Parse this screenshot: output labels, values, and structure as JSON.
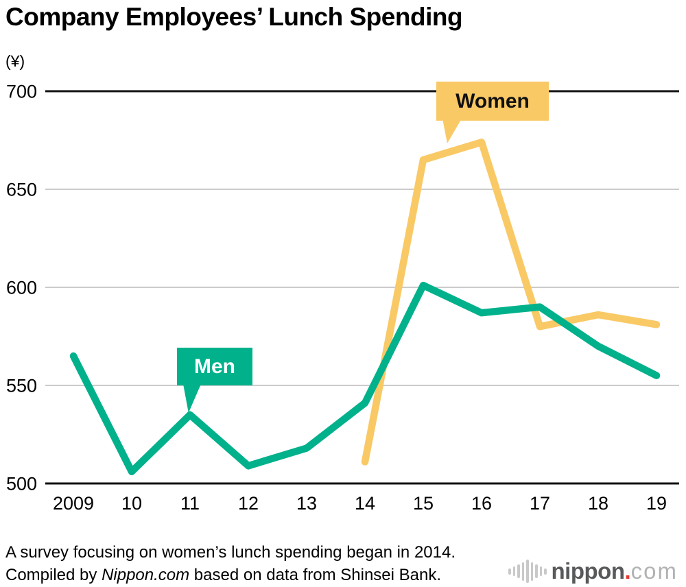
{
  "title": "Company Employees’ Lunch Spending",
  "chart_data": {
    "type": "line",
    "title": "Company Employees’ Lunch Spending",
    "unit_label": "(¥)",
    "categories": [
      "2009",
      "10",
      "11",
      "12",
      "13",
      "14",
      "15",
      "16",
      "17",
      "18",
      "19"
    ],
    "yticks": [
      700,
      650,
      600,
      550,
      500
    ],
    "ylim": [
      500,
      700
    ],
    "grid": "horizontal",
    "legend_position": "inline-callouts",
    "annotation": "Women series begins in 2014",
    "series": [
      {
        "name": "Men",
        "color": "#00B18B",
        "label_text_color": "#ffffff",
        "values": [
          565,
          506,
          535,
          509,
          518,
          541,
          601,
          587,
          590,
          570,
          555
        ]
      },
      {
        "name": "Women",
        "color": "#F9C966",
        "label_text_color": "#111111",
        "values": [
          511,
          665,
          674,
          580,
          586,
          581
        ]
      }
    ],
    "axis_color": "#111111",
    "gridline_color": "#CBCBCB",
    "tick_label_color": "#000000"
  },
  "footer": {
    "note": "A survey focusing on women’s lunch spending began in 2014.",
    "credit_prefix": "Compiled by ",
    "credit_source": "Nippon.com",
    "credit_suffix": " based on data from Shinsei Bank."
  },
  "logo": {
    "icon": "soundwave-bars-icon",
    "word": "nippon",
    "dot": ".",
    "tld": "com",
    "dot_color": "#E8392D"
  }
}
